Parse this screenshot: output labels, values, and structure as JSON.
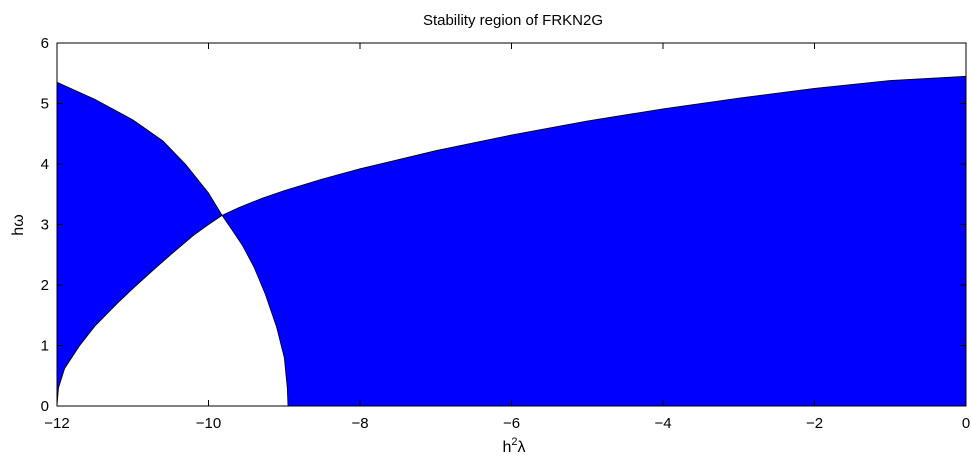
{
  "chart_data": {
    "type": "area",
    "title": "Stability region of FRKN2G",
    "xlabel": {
      "base": "h",
      "sup": "2",
      "tail": "λ"
    },
    "ylabel": "hω",
    "xlim": [
      -12,
      0
    ],
    "ylim": [
      0,
      6
    ],
    "xticks": [
      -12,
      -10,
      -8,
      -6,
      -4,
      -2,
      0
    ],
    "yticks": [
      0,
      1,
      2,
      3,
      4,
      5,
      6
    ],
    "xtick_labels": [
      "−12",
      "−10",
      "−8",
      "−6",
      "−4",
      "−2",
      "0"
    ],
    "ytick_labels": [
      "0",
      "1",
      "2",
      "3",
      "4",
      "5",
      "6"
    ],
    "grid": false,
    "fill_color": "#0000ff",
    "regions": [
      {
        "name": "",
        "boundary": [
          [
            -12,
            0.0
          ],
          [
            -11.98,
            0.3
          ],
          [
            -11.9,
            0.62
          ],
          [
            -11.7,
            1.0
          ],
          [
            -11.5,
            1.32
          ],
          [
            -11.2,
            1.7
          ],
          [
            -11.0,
            1.94
          ],
          [
            -10.7,
            2.28
          ],
          [
            -10.5,
            2.5
          ],
          [
            -10.2,
            2.82
          ],
          [
            -10.0,
            3.0
          ],
          [
            -9.82,
            3.15
          ],
          [
            -10.0,
            3.52
          ],
          [
            -10.3,
            3.99
          ],
          [
            -10.6,
            4.38
          ],
          [
            -11.0,
            4.73
          ],
          [
            -11.5,
            5.07
          ],
          [
            -12,
            5.35
          ],
          [
            -12,
            0.0
          ]
        ]
      },
      {
        "name": "",
        "boundary": [
          [
            -9.82,
            3.15
          ],
          [
            -9.6,
            3.28
          ],
          [
            -9.3,
            3.43
          ],
          [
            -9.0,
            3.56
          ],
          [
            -8.5,
            3.75
          ],
          [
            -8.0,
            3.92
          ],
          [
            -7.0,
            4.22
          ],
          [
            -6.0,
            4.48
          ],
          [
            -5.0,
            4.71
          ],
          [
            -4.0,
            4.91
          ],
          [
            -3.0,
            5.09
          ],
          [
            -2.0,
            5.25
          ],
          [
            -1.0,
            5.38
          ],
          [
            0.0,
            5.45
          ],
          [
            0.0,
            0.0
          ],
          [
            -8.95,
            0.0
          ],
          [
            -8.96,
            0.3
          ],
          [
            -9.0,
            0.8
          ],
          [
            -9.1,
            1.3
          ],
          [
            -9.25,
            1.85
          ],
          [
            -9.4,
            2.3
          ],
          [
            -9.55,
            2.65
          ],
          [
            -9.7,
            2.93
          ],
          [
            -9.82,
            3.15
          ]
        ]
      }
    ]
  }
}
